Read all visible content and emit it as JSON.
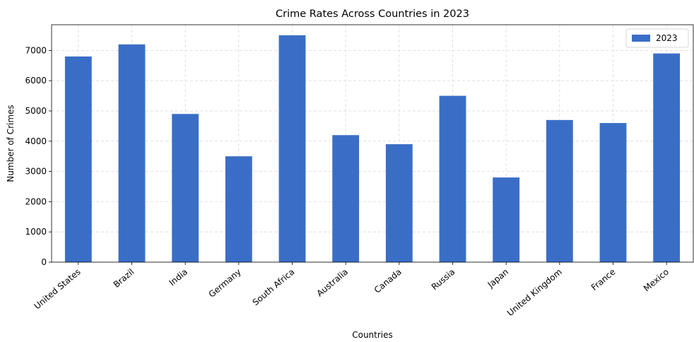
{
  "chart_data": {
    "type": "bar",
    "title": "Crime Rates Across Countries in 2023",
    "xlabel": "Countries",
    "ylabel": "Number of Crimes",
    "categories": [
      "United States",
      "Brazil",
      "India",
      "Germany",
      "South Africa",
      "Australia",
      "Canada",
      "Russia",
      "Japan",
      "United Kingdom",
      "France",
      "Mexico"
    ],
    "series": [
      {
        "name": "2023",
        "values": [
          6800,
          7200,
          4900,
          3500,
          7500,
          4200,
          3900,
          5500,
          2800,
          4700,
          4600,
          6900
        ],
        "color": "#3a6ec6"
      }
    ],
    "ylim": [
      0,
      7850
    ],
    "yticks": [
      0,
      1000,
      2000,
      3000,
      4000,
      5000,
      6000,
      7000
    ],
    "grid": true,
    "legend_position": "top-right"
  }
}
